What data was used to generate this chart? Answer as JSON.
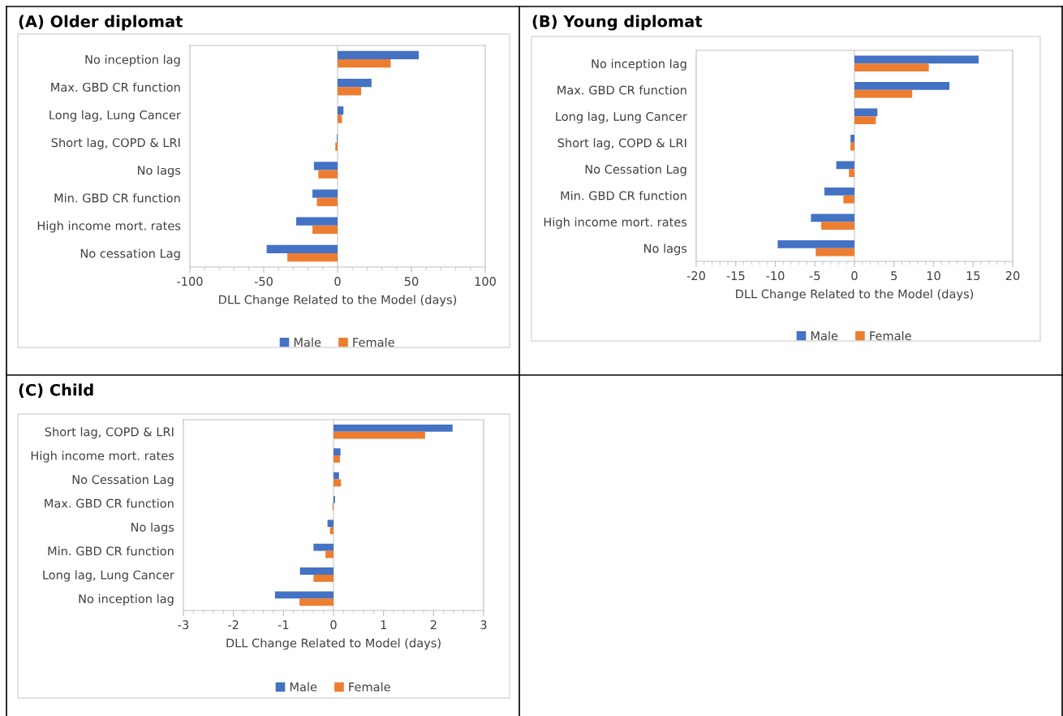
{
  "chart_data": [
    {
      "type": "bar",
      "orientation": "horizontal",
      "title": "(A) Older diplomat",
      "xlabel": "DLL Change Related to the Model (days)",
      "categories": [
        "No inception lag",
        "Max. GBD CR function",
        "Long lag, Lung Cancer",
        "Short lag, COPD & LRI",
        "No lags",
        "Min. GBD CR function",
        "High income mort. rates",
        "No cessation Lag"
      ],
      "series": [
        {
          "name": "Male",
          "color": "#4472c4",
          "values": [
            55,
            23,
            4,
            -0.5,
            -16,
            -17,
            -28,
            -48
          ]
        },
        {
          "name": "Female",
          "color": "#ed7d31",
          "values": [
            36,
            16,
            3,
            -1.5,
            -13,
            -14,
            -17,
            -34
          ]
        }
      ],
      "xlim": [
        -100,
        100
      ],
      "xticks": [
        -100,
        -50,
        0,
        50,
        100
      ],
      "ref_lines": [
        {
          "axis": "x",
          "value": 0,
          "color": "#d9d9d9"
        }
      ],
      "grid": false,
      "legend": "bottom"
    },
    {
      "type": "bar",
      "orientation": "horizontal",
      "title": "(B) Young diplomat",
      "xlabel": "DLL Change Related to the Model (days)",
      "categories": [
        "No inception lag",
        "Max. GBD CR function",
        "Long lag, Lung Cancer",
        "Short lag, COPD & LRI",
        "No Cessation Lag",
        "Min. GBD CR function",
        "High income mort. rates",
        "No lags"
      ],
      "series": [
        {
          "name": "Male",
          "color": "#4472c4",
          "values": [
            15.7,
            12.0,
            2.9,
            -0.5,
            -2.3,
            -3.8,
            -5.5,
            -9.7
          ]
        },
        {
          "name": "Female",
          "color": "#ed7d31",
          "values": [
            9.4,
            7.3,
            2.7,
            -0.5,
            -0.7,
            -1.4,
            -4.2,
            -4.9
          ]
        }
      ],
      "xlim": [
        -20,
        20
      ],
      "xticks": [
        -20,
        -15,
        -10,
        -5,
        0,
        5,
        10,
        15,
        20
      ],
      "ref_lines": [
        {
          "axis": "x",
          "value": 0,
          "color": "#d9d9d9"
        }
      ],
      "grid": false,
      "legend": "bottom"
    },
    {
      "type": "bar",
      "orientation": "horizontal",
      "title": "(C) Child",
      "xlabel": "DLL Change Related to Model (days)",
      "categories": [
        "Short lag, COPD & LRI",
        "High income mort. rates",
        "No Cessation Lag",
        "Max. GBD CR function",
        "No lags",
        "Min. GBD CR function",
        "Long lag, Lung Cancer",
        "No inception lag"
      ],
      "series": [
        {
          "name": "Male",
          "color": "#4472c4",
          "values": [
            2.38,
            0.14,
            0.11,
            0.03,
            -0.12,
            -0.4,
            -0.67,
            -1.17
          ]
        },
        {
          "name": "Female",
          "color": "#ed7d31",
          "values": [
            1.83,
            0.13,
            0.15,
            -0.02,
            -0.07,
            -0.16,
            -0.4,
            -0.68
          ]
        }
      ],
      "xlim": [
        -3,
        3
      ],
      "xticks": [
        -3,
        -2,
        -1,
        0,
        1,
        2,
        3
      ],
      "ref_lines": [
        {
          "axis": "x",
          "value": 0,
          "color": "#d9d9d9"
        }
      ],
      "grid": false,
      "legend": "bottom"
    }
  ]
}
